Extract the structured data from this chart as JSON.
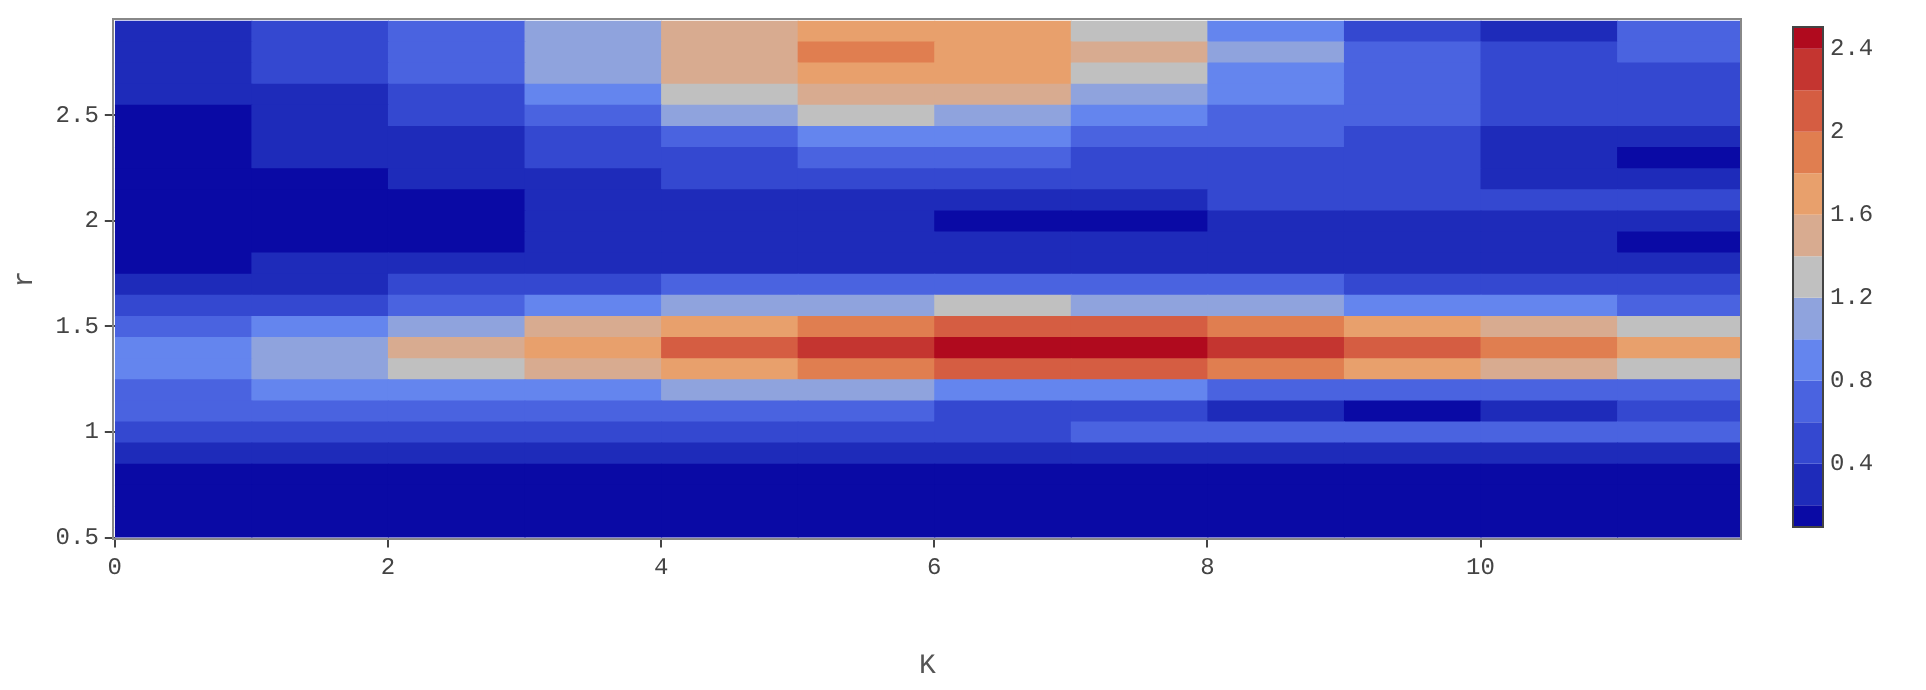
{
  "chart_data": {
    "type": "heatmap",
    "xlabel": "K",
    "ylabel": "r",
    "x": [
      0.5,
      1.5,
      2.5,
      3.5,
      4.5,
      5.5,
      6.5,
      7.5,
      8.5,
      9.5,
      10.5,
      11.5
    ],
    "y": [
      2.9,
      2.8,
      2.7,
      2.6,
      2.5,
      2.4,
      2.3,
      2.2,
      2.1,
      2.0,
      1.9,
      1.8,
      1.7,
      1.6,
      1.5,
      1.4,
      1.3,
      1.2,
      1.1,
      1.0,
      0.9,
      0.8,
      0.7,
      0.6,
      0.5
    ],
    "cells": [
      [
        0.3,
        0.45,
        0.7,
        1.0,
        1.4,
        1.65,
        1.6,
        1.35,
        0.95,
        0.5,
        0.3,
        0.6
      ],
      [
        0.3,
        0.45,
        0.7,
        1.05,
        1.45,
        1.85,
        1.7,
        1.4,
        1.0,
        0.7,
        0.5,
        0.6
      ],
      [
        0.25,
        0.4,
        0.65,
        1.0,
        1.4,
        1.75,
        1.65,
        1.35,
        0.95,
        0.75,
        0.55,
        0.55
      ],
      [
        0.25,
        0.35,
        0.55,
        0.85,
        1.25,
        1.5,
        1.45,
        1.15,
        0.85,
        0.7,
        0.55,
        0.55
      ],
      [
        0.15,
        0.3,
        0.45,
        0.7,
        1.0,
        1.2,
        1.15,
        0.95,
        0.75,
        0.65,
        0.55,
        0.5
      ],
      [
        0.1,
        0.25,
        0.35,
        0.55,
        0.75,
        0.9,
        0.85,
        0.75,
        0.65,
        0.55,
        0.35,
        0.3
      ],
      [
        0.1,
        0.2,
        0.3,
        0.45,
        0.55,
        0.6,
        0.6,
        0.55,
        0.5,
        0.45,
        0.25,
        0.15
      ],
      [
        0.1,
        0.1,
        0.25,
        0.35,
        0.45,
        0.45,
        0.45,
        0.45,
        0.45,
        0.45,
        0.35,
        0.3
      ],
      [
        0.1,
        0.1,
        0.15,
        0.3,
        0.35,
        0.35,
        0.35,
        0.35,
        0.4,
        0.45,
        0.45,
        0.45
      ],
      [
        0.1,
        0.1,
        0.15,
        0.2,
        0.3,
        0.25,
        0.15,
        0.15,
        0.3,
        0.35,
        0.35,
        0.35
      ],
      [
        0.1,
        0.1,
        0.15,
        0.2,
        0.25,
        0.25,
        0.25,
        0.25,
        0.3,
        0.3,
        0.25,
        0.15
      ],
      [
        0.15,
        0.2,
        0.25,
        0.3,
        0.35,
        0.35,
        0.35,
        0.35,
        0.35,
        0.35,
        0.3,
        0.3
      ],
      [
        0.3,
        0.35,
        0.45,
        0.55,
        0.6,
        0.65,
        0.65,
        0.6,
        0.6,
        0.55,
        0.5,
        0.45
      ],
      [
        0.45,
        0.55,
        0.7,
        0.85,
        1.0,
        1.15,
        1.2,
        1.15,
        1.05,
        0.95,
        0.85,
        0.75
      ],
      [
        0.7,
        0.9,
        1.15,
        1.4,
        1.65,
        1.9,
        2.0,
        2.0,
        1.9,
        1.7,
        1.5,
        1.35
      ],
      [
        0.9,
        1.15,
        1.45,
        1.75,
        2.05,
        2.35,
        2.45,
        2.45,
        2.35,
        2.15,
        1.9,
        1.7
      ],
      [
        0.85,
        1.0,
        1.2,
        1.45,
        1.7,
        1.95,
        2.05,
        2.0,
        1.85,
        1.65,
        1.45,
        1.3
      ],
      [
        0.75,
        0.8,
        0.85,
        0.95,
        1.0,
        1.0,
        0.95,
        0.85,
        0.75,
        0.7,
        0.7,
        0.7
      ],
      [
        0.65,
        0.65,
        0.65,
        0.65,
        0.7,
        0.65,
        0.55,
        0.4,
        0.3,
        0.15,
        0.35,
        0.45
      ],
      [
        0.55,
        0.55,
        0.55,
        0.55,
        0.55,
        0.55,
        0.55,
        0.6,
        0.6,
        0.6,
        0.6,
        0.6
      ],
      [
        0.3,
        0.3,
        0.3,
        0.3,
        0.3,
        0.3,
        0.3,
        0.3,
        0.3,
        0.3,
        0.3,
        0.3
      ],
      [
        0.15,
        0.15,
        0.15,
        0.15,
        0.15,
        0.15,
        0.15,
        0.15,
        0.15,
        0.15,
        0.15,
        0.15
      ],
      [
        0.15,
        0.15,
        0.15,
        0.15,
        0.15,
        0.15,
        0.15,
        0.15,
        0.15,
        0.15,
        0.15,
        0.15
      ],
      [
        0.15,
        0.15,
        0.15,
        0.15,
        0.15,
        0.15,
        0.15,
        0.15,
        0.15,
        0.15,
        0.15,
        0.15
      ],
      [
        0.15,
        0.15,
        0.15,
        0.15,
        0.15,
        0.15,
        0.15,
        0.15,
        0.15,
        0.15,
        0.15,
        0.15
      ]
    ],
    "colors": [
      "#0a0aa5",
      "#1e2bba",
      "#3448d0",
      "#4a63e0",
      "#6485ee",
      "#8fa3dd",
      "#c0c0c0",
      "#d8ab90",
      "#e8a06c",
      "#e07e50",
      "#d55d42",
      "#c43530",
      "#b00a1e"
    ],
    "clim": [
      0.1,
      2.5
    ],
    "cticks": [
      0.4,
      0.8,
      1.2,
      1.6,
      2,
      2.4
    ],
    "xlim": [
      0,
      11.9
    ],
    "ylim": [
      0.5,
      2.95
    ],
    "xticks": [
      0,
      2,
      4,
      6,
      8,
      10
    ],
    "yticks": [
      0.5,
      1,
      1.5,
      2,
      2.5
    ],
    "grid": false,
    "legend": false
  }
}
